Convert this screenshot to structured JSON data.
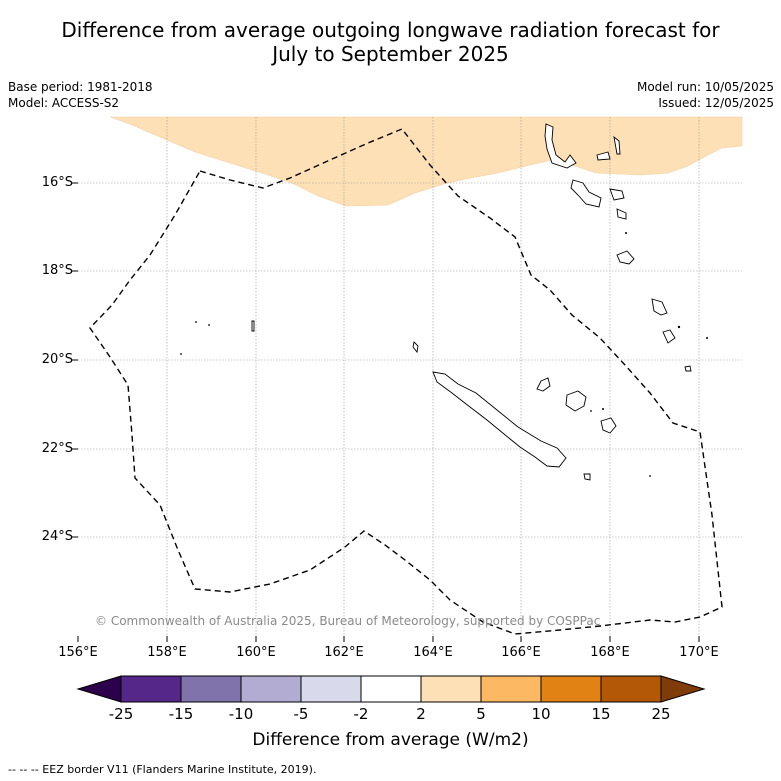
{
  "title_line1": "Difference from average outgoing longwave radiation forecast for",
  "title_line2": "July to September 2025",
  "base_period": "Base period: 1981-2018",
  "model": "Model: ACCESS-S2",
  "model_run": "Model run: 10/05/2025",
  "issued": "Issued: 12/05/2025",
  "copyright": "© Commonwealth of Australia 2025, Bureau of Meteorology, supported by COSPPac",
  "lat_labels": [
    "16°S",
    "18°S",
    "20°S",
    "22°S",
    "24°S"
  ],
  "lon_labels": [
    "156°E",
    "158°E",
    "160°E",
    "162°E",
    "164°E",
    "166°E",
    "168°E",
    "170°E"
  ],
  "colorbar": {
    "ticks": [
      "-25",
      "-15",
      "-10",
      "-5",
      "-2",
      "2",
      "5",
      "10",
      "15",
      "25"
    ],
    "label": "Difference from average (W/m2)",
    "colors": [
      "#2d004b",
      "#542788",
      "#8073ac",
      "#b2abd2",
      "#d8daeb",
      "#ffffff",
      "#fee0b6",
      "#fdb863",
      "#e08214",
      "#b35806",
      "#7f3b08"
    ]
  },
  "footnote": "-- -- -- EEZ border V11 (Flanders Marine Institute, 2019).",
  "map_colors": {
    "anomaly_2_to_5": "#fde0b6",
    "gridline": "#999999"
  }
}
